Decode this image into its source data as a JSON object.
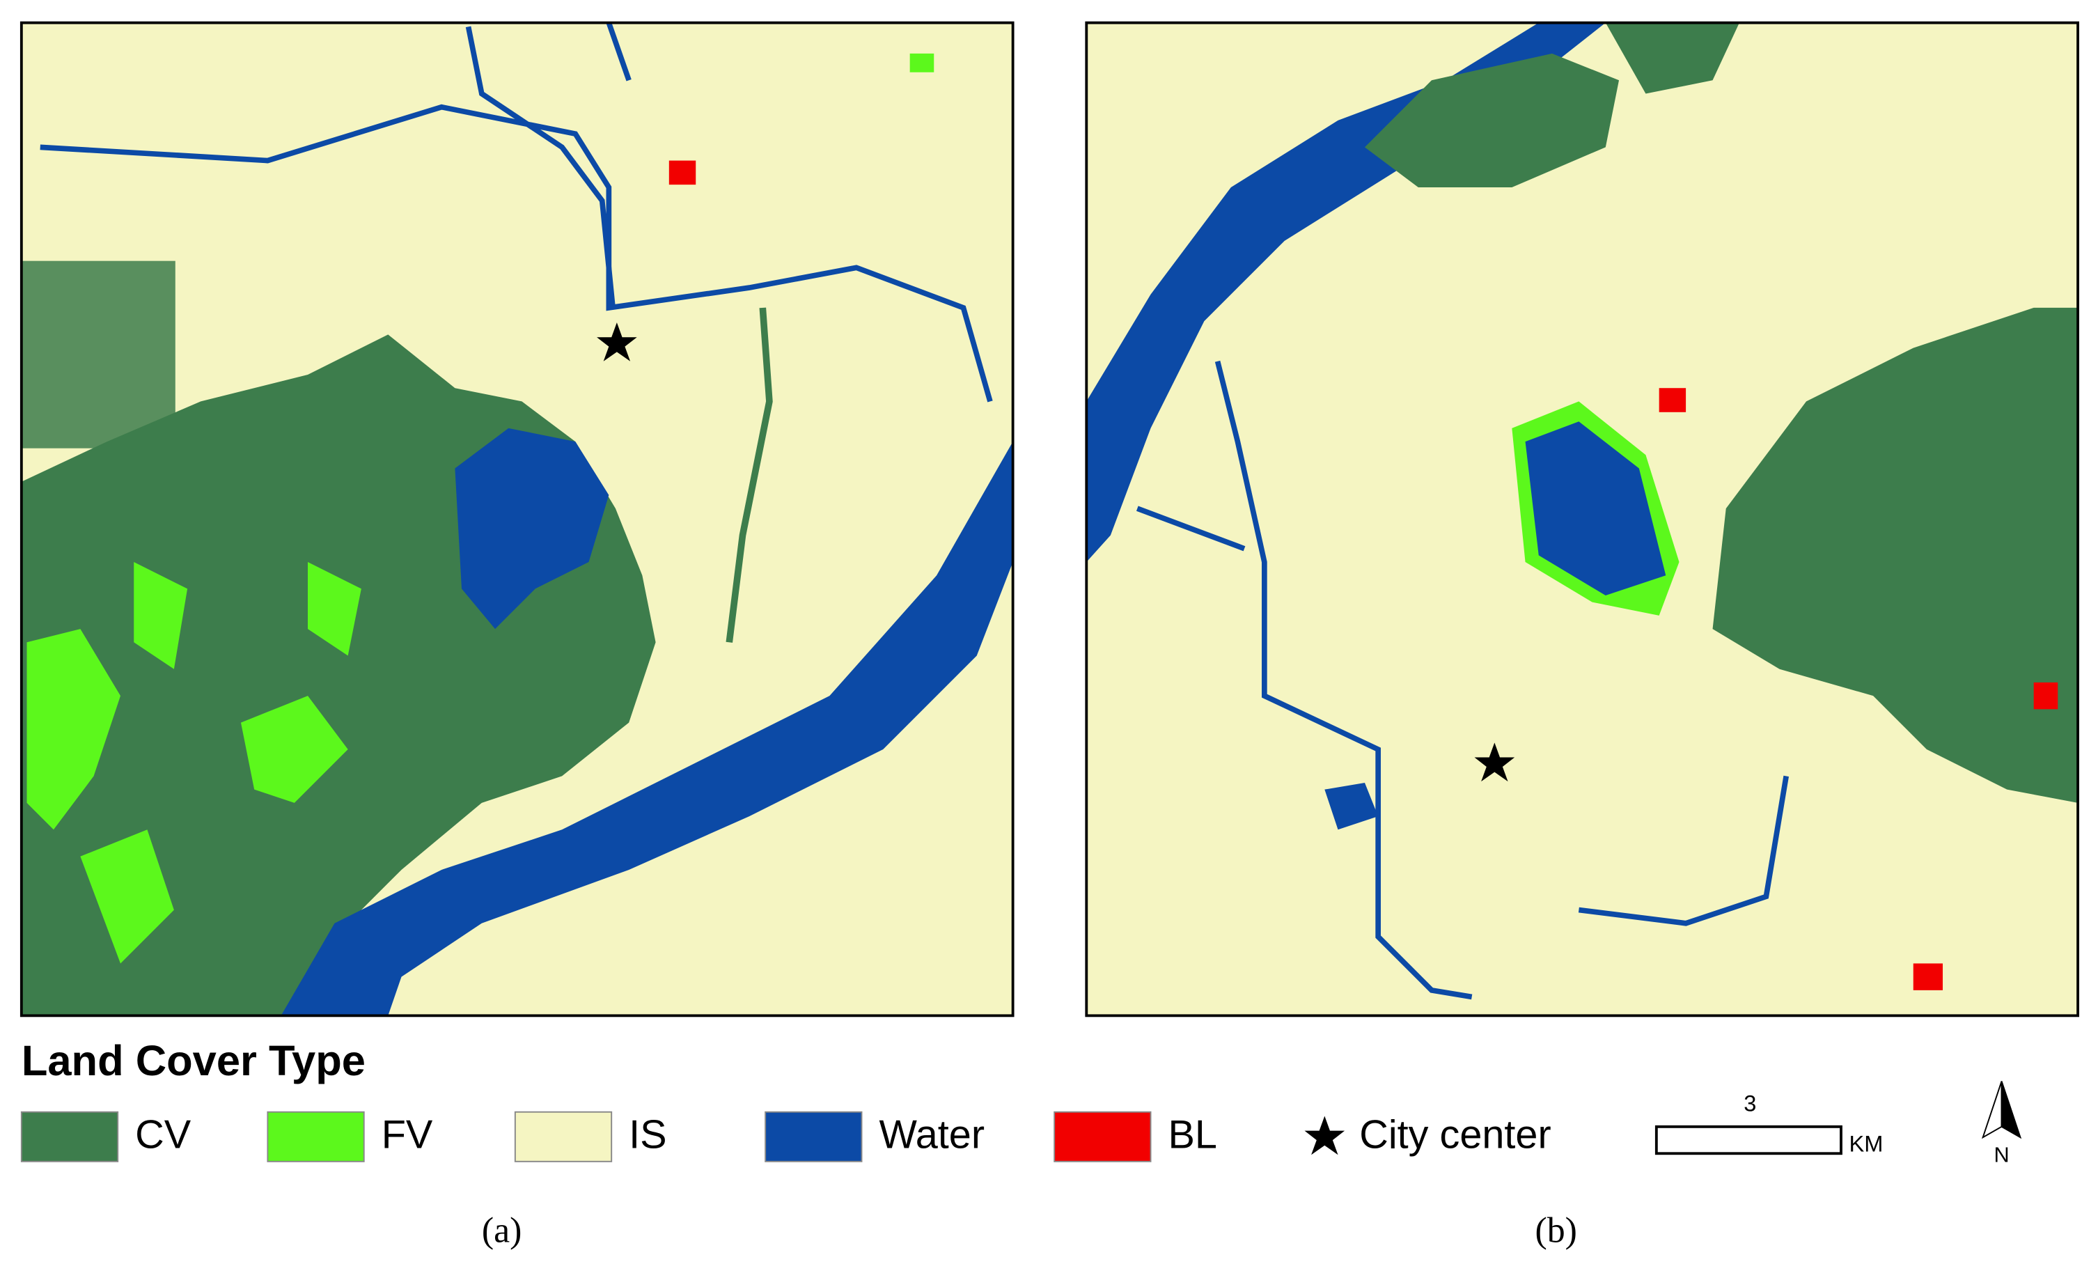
{
  "legend": {
    "title": "Land Cover Type",
    "items": [
      {
        "label": "CV",
        "color": "#3d7d4c"
      },
      {
        "label": "FV",
        "color": "#5cf81c"
      },
      {
        "label": "IS",
        "color": "#f5f5c2"
      },
      {
        "label": "Water",
        "color": "#0c4aa6"
      },
      {
        "label": "BL",
        "color": "#f20000"
      }
    ],
    "city_center": "City center"
  },
  "scale_bar": {
    "value": 3,
    "unit": "KM"
  },
  "north": "N",
  "captions": [
    "(a)",
    "(b)"
  ]
}
